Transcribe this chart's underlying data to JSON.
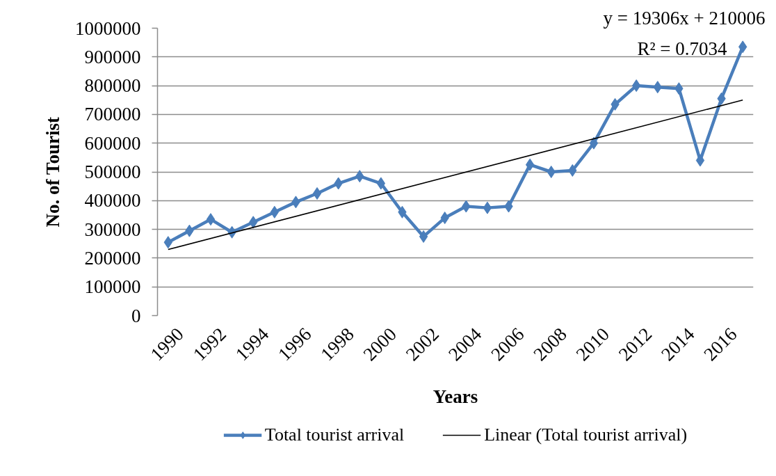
{
  "chart_data": {
    "type": "line",
    "xlabel": "Years",
    "ylabel": "No. of Tourist",
    "x": [
      1990,
      1991,
      1992,
      1993,
      1994,
      1995,
      1996,
      1997,
      1998,
      1999,
      2000,
      2001,
      2002,
      2003,
      2004,
      2005,
      2006,
      2007,
      2008,
      2009,
      2010,
      2011,
      2012,
      2013,
      2014,
      2015,
      2016,
      2017
    ],
    "series": [
      {
        "name": "Total tourist arrival",
        "color": "#4a7ebb",
        "marker": "diamond",
        "values": [
          255000,
          295000,
          335000,
          290000,
          325000,
          360000,
          395000,
          425000,
          460000,
          485000,
          460000,
          360000,
          275000,
          340000,
          380000,
          375000,
          380000,
          525000,
          500000,
          505000,
          600000,
          735000,
          800000,
          795000,
          790000,
          540000,
          755000,
          935000
        ]
      },
      {
        "name": "Linear (Total tourist arrival)",
        "color": "#000000",
        "marker": "none",
        "x": [
          1990,
          2017
        ],
        "values": [
          230000,
          750000
        ]
      }
    ],
    "xlim": [
      1989.5,
      2017.5
    ],
    "xticks": [
      1990,
      1992,
      1994,
      1996,
      1998,
      2000,
      2002,
      2004,
      2006,
      2008,
      2010,
      2012,
      2014,
      2016
    ],
    "ylim": [
      0,
      1000000
    ],
    "yticks": [
      0,
      100000,
      200000,
      300000,
      400000,
      500000,
      600000,
      700000,
      800000,
      900000,
      1000000
    ],
    "annotations": [
      "y = 19306x + 210006",
      "R² = 0.7034"
    ],
    "grid": "y",
    "legend": "bottom",
    "line_style": "solid"
  }
}
